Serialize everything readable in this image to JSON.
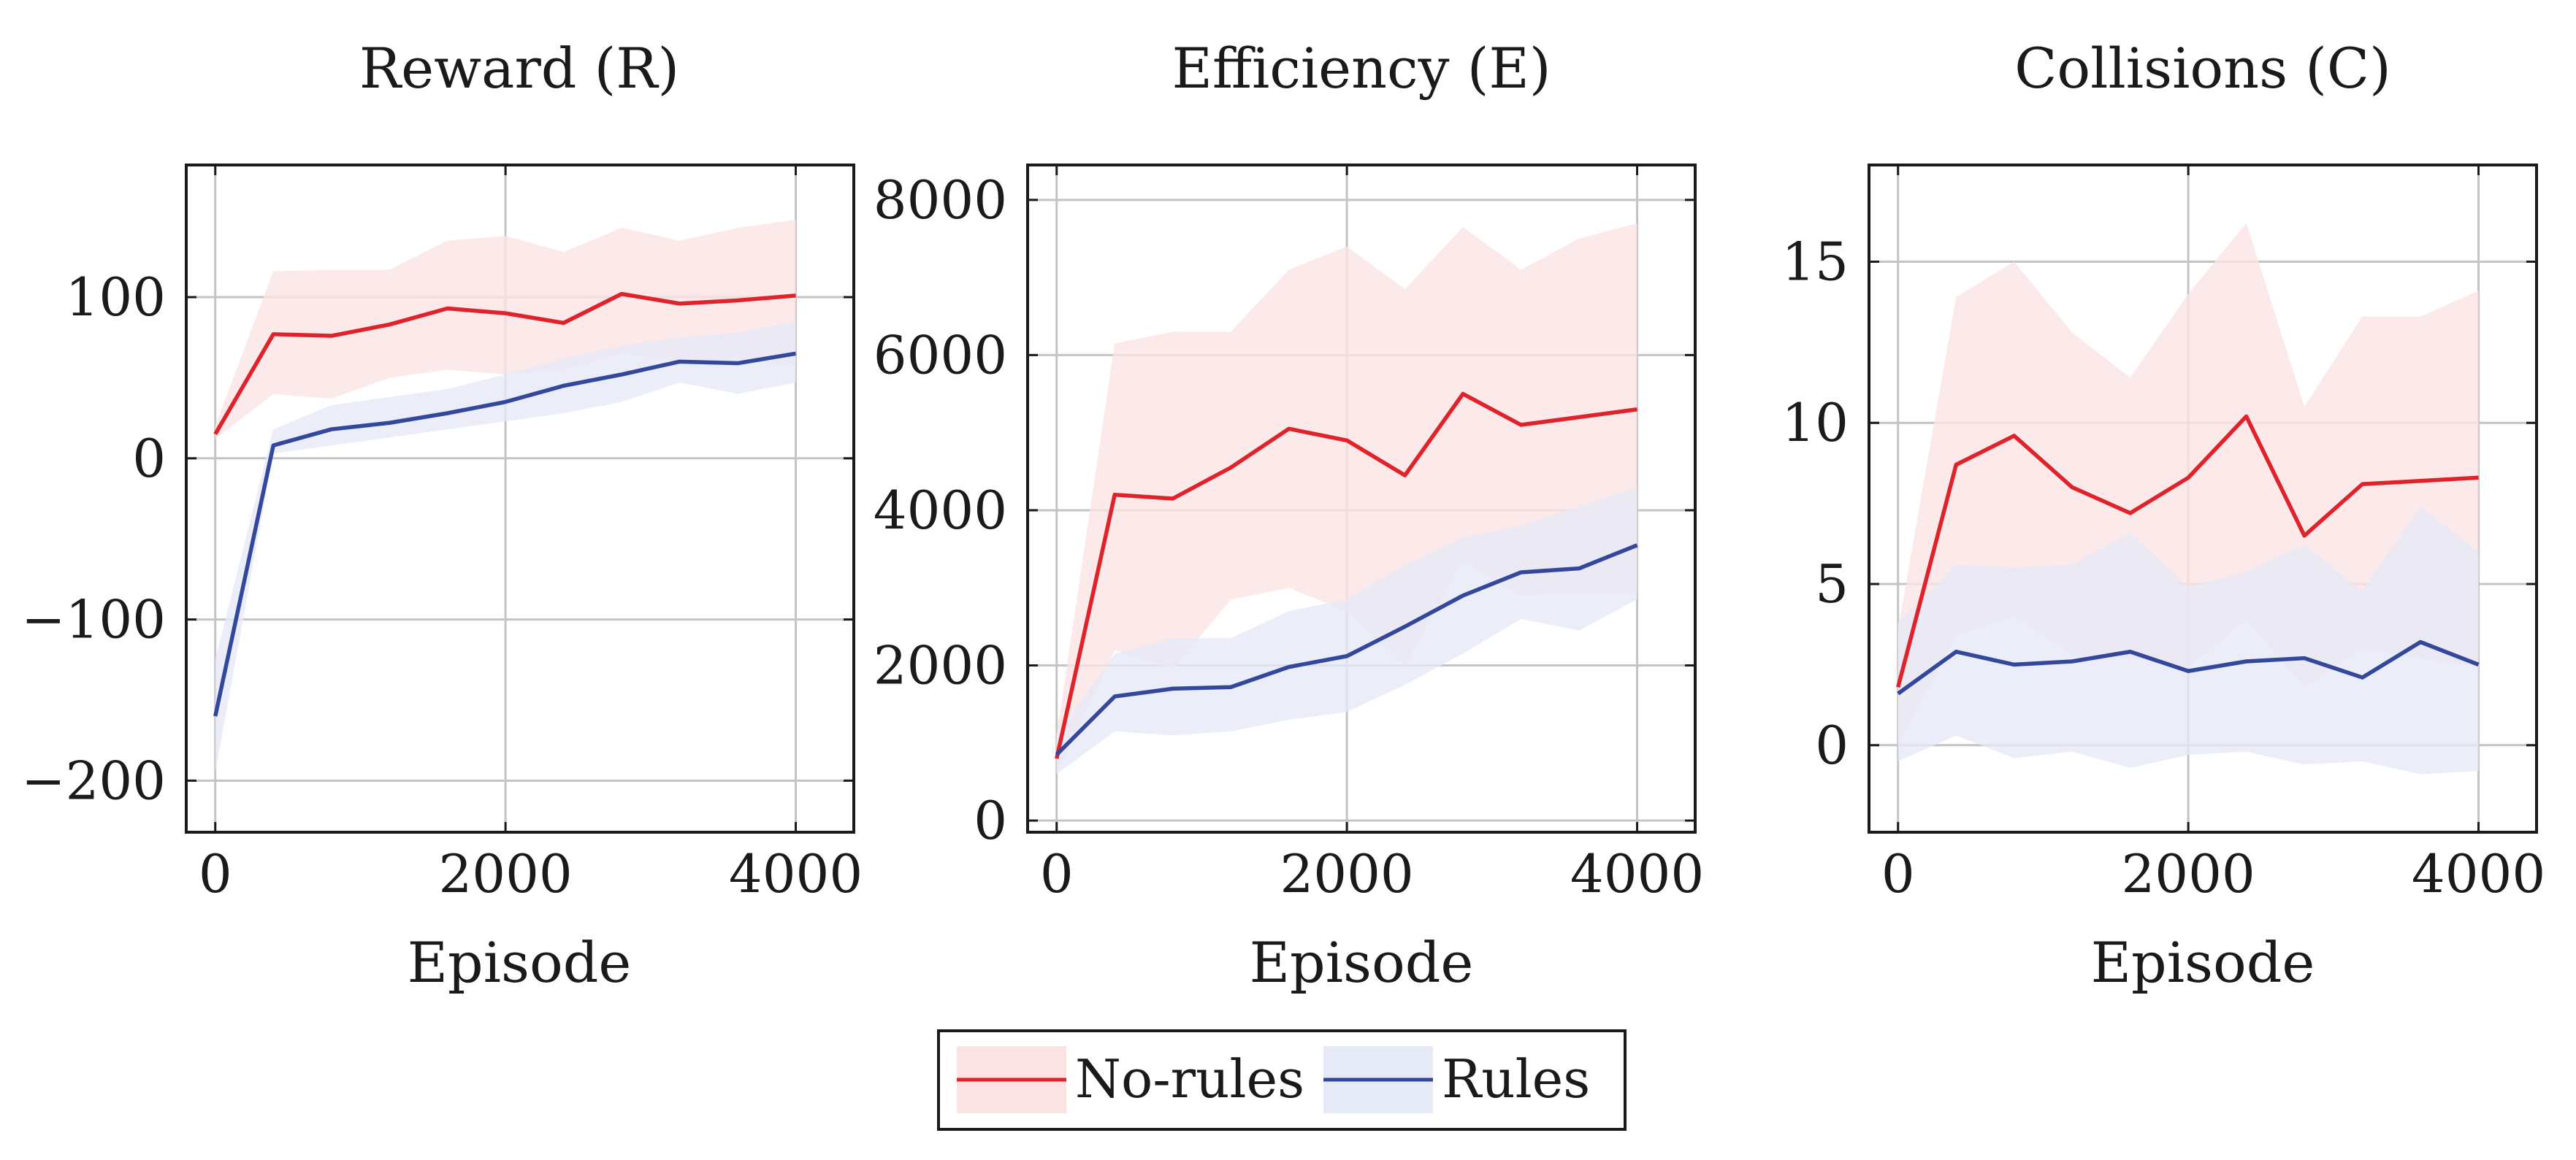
{
  "legend": {
    "position": "bottom-center",
    "entries": [
      {
        "name": "No-rules",
        "color": "#e0232a",
        "band_color": "#fbe3e3"
      },
      {
        "name": "Rules",
        "color": "#34489b",
        "band_color": "#e6e9f6"
      }
    ]
  },
  "chart_data": [
    {
      "type": "line",
      "title": "Reward (R)",
      "xlabel": "Episode",
      "ylabel": "",
      "xlim": [
        -200,
        4400
      ],
      "ylim": [
        -232,
        182
      ],
      "xticks": [
        0,
        2000,
        4000
      ],
      "xtick_labels": [
        "0",
        "2000",
        "4000"
      ],
      "yticks": [
        -200,
        -100,
        0,
        100
      ],
      "ytick_labels": [
        "−200",
        "−100",
        "0",
        "100"
      ],
      "grid": true,
      "x": [
        0,
        400,
        800,
        1200,
        1600,
        2000,
        2400,
        2800,
        3200,
        3600,
        4000
      ],
      "series": [
        {
          "name": "No-rules",
          "color": "#e0232a",
          "band_color": "#fbe3e3",
          "values": [
            15,
            77,
            76,
            83,
            93,
            90,
            84,
            102,
            96,
            98,
            101
          ],
          "lower": [
            12,
            40,
            37,
            50,
            55,
            52,
            55,
            65,
            60,
            62,
            57
          ],
          "upper": [
            20,
            116,
            117,
            117,
            135,
            138,
            128,
            143,
            135,
            143,
            148
          ]
        },
        {
          "name": "Rules",
          "color": "#34489b",
          "band_color": "#e6e9f6",
          "values": [
            -160,
            8,
            18,
            22,
            28,
            35,
            45,
            52,
            60,
            59,
            65
          ],
          "lower": [
            -195,
            3,
            8,
            13,
            18,
            23,
            28,
            35,
            47,
            40,
            47
          ],
          "upper": [
            -125,
            18,
            33,
            38,
            43,
            52,
            62,
            70,
            75,
            78,
            85
          ]
        }
      ]
    },
    {
      "type": "line",
      "title": "Efficiency (E)",
      "xlabel": "Episode",
      "ylabel": "",
      "xlim": [
        -200,
        4400
      ],
      "ylim": [
        -150,
        8450
      ],
      "xticks": [
        0,
        2000,
        4000
      ],
      "xtick_labels": [
        "0",
        "2000",
        "4000"
      ],
      "yticks": [
        0,
        2000,
        4000,
        6000,
        8000
      ],
      "ytick_labels": [
        "0",
        "2000",
        "4000",
        "6000",
        "8000"
      ],
      "grid": true,
      "x": [
        0,
        400,
        800,
        1200,
        1600,
        2000,
        2400,
        2800,
        3200,
        3600,
        4000
      ],
      "series": [
        {
          "name": "No-rules",
          "color": "#e0232a",
          "band_color": "#fbe3e3",
          "values": [
            800,
            4200,
            4150,
            4550,
            5050,
            4900,
            4450,
            5500,
            5100,
            5200,
            5300
          ],
          "lower": [
            600,
            2200,
            1950,
            2850,
            3000,
            2700,
            2000,
            3350,
            2900,
            2950,
            2950
          ],
          "upper": [
            1100,
            6150,
            6300,
            6300,
            7100,
            7400,
            6850,
            7650,
            7100,
            7500,
            7700
          ]
        },
        {
          "name": "Rules",
          "color": "#34489b",
          "band_color": "#e6e9f6",
          "values": [
            850,
            1600,
            1700,
            1720,
            1980,
            2120,
            2500,
            2900,
            3200,
            3250,
            3550
          ],
          "lower": [
            600,
            1150,
            1100,
            1150,
            1300,
            1400,
            1750,
            2150,
            2600,
            2450,
            2850
          ],
          "upper": [
            1100,
            2150,
            2350,
            2350,
            2700,
            2850,
            3300,
            3650,
            3800,
            4050,
            4300
          ]
        }
      ]
    },
    {
      "type": "line",
      "title": "Collisions (C)",
      "xlabel": "Episode",
      "ylabel": "",
      "xlim": [
        -200,
        4400
      ],
      "ylim": [
        -2.7,
        18
      ],
      "xticks": [
        0,
        2000,
        4000
      ],
      "xtick_labels": [
        "0",
        "2000",
        "4000"
      ],
      "yticks": [
        0,
        5,
        10,
        15
      ],
      "ytick_labels": [
        "0",
        "5",
        "10",
        "15"
      ],
      "grid": true,
      "x": [
        0,
        400,
        800,
        1200,
        1600,
        2000,
        2400,
        2800,
        3200,
        3600,
        4000
      ],
      "series": [
        {
          "name": "No-rules",
          "color": "#e0232a",
          "band_color": "#fbe3e3",
          "values": [
            1.8,
            8.7,
            9.6,
            8.0,
            7.2,
            8.3,
            10.2,
            6.5,
            8.1,
            8.2,
            8.3
          ],
          "lower": [
            0.0,
            3.4,
            4.0,
            2.8,
            2.7,
            2.4,
            3.9,
            1.8,
            3.0,
            2.7,
            2.4
          ],
          "upper": [
            3.6,
            13.9,
            15.0,
            12.8,
            11.4,
            14.0,
            16.2,
            10.5,
            13.3,
            13.3,
            14.1
          ]
        },
        {
          "name": "Rules",
          "color": "#34489b",
          "band_color": "#e6e9f6",
          "values": [
            1.6,
            2.9,
            2.5,
            2.6,
            2.9,
            2.3,
            2.6,
            2.7,
            2.1,
            3.2,
            2.5
          ],
          "lower": [
            -0.5,
            0.3,
            -0.4,
            -0.2,
            -0.7,
            -0.3,
            -0.2,
            -0.6,
            -0.5,
            -0.9,
            -0.8
          ],
          "upper": [
            3.8,
            5.6,
            5.5,
            5.6,
            6.6,
            4.9,
            5.4,
            6.2,
            4.8,
            7.4,
            6.0
          ]
        }
      ]
    }
  ]
}
